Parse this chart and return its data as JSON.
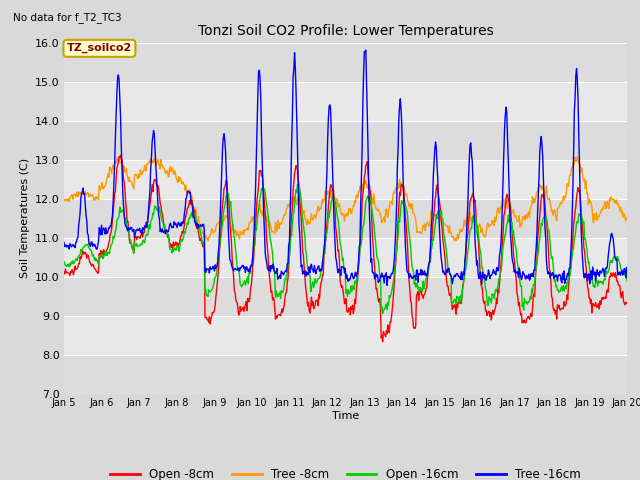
{
  "title": "Tonzi Soil CO2 Profile: Lower Temperatures",
  "subtitle": "No data for f_T2_TC3",
  "ylabel": "Soil Temperatures (C)",
  "xlabel": "Time",
  "ylim": [
    7.0,
    16.0
  ],
  "yticks": [
    7.0,
    8.0,
    9.0,
    10.0,
    11.0,
    12.0,
    13.0,
    14.0,
    15.0,
    16.0
  ],
  "xtick_labels": [
    "Jan 5",
    "Jan 6",
    "Jan 7",
    "Jan 8",
    "Jan 9",
    "Jan 10",
    "Jan 11",
    "Jan 12",
    "Jan 13",
    "Jan 14",
    "Jan 15",
    "Jan 16",
    "Jan 17",
    "Jan 18",
    "Jan 19",
    "Jan 20"
  ],
  "legend_label": "TZ_soilco2",
  "legend_entries": [
    "Open -8cm",
    "Tree -8cm",
    "Open -16cm",
    "Tree -16cm"
  ],
  "legend_colors": [
    "#ff0000",
    "#ff9900",
    "#00cc00",
    "#0000ff"
  ],
  "bg_color": "#d9d9d9",
  "plot_bg_light": "#e8e8e8",
  "plot_bg_dark": "#d0d0d0",
  "grid_color": "#ffffff"
}
